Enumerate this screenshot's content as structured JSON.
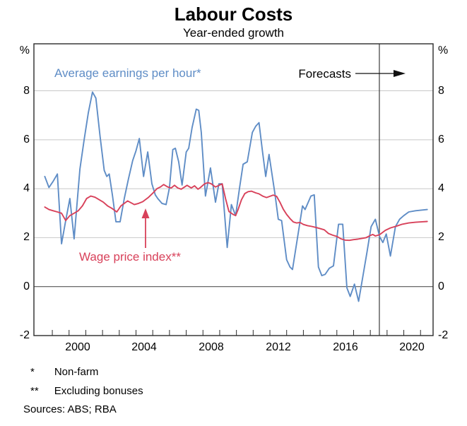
{
  "title": "Labour Costs",
  "subtitle": "Year-ended growth",
  "annotations": {
    "blue_label": "Average earnings per hour*",
    "red_label": "Wage price index**",
    "forecast_label": "Forecasts"
  },
  "footnotes": [
    {
      "marker": "*",
      "text": "Non-farm"
    },
    {
      "marker": "**",
      "text": "Excluding bonuses"
    }
  ],
  "sources": "Sources: ABS; RBA",
  "colors": {
    "blue": "#5f8dc6",
    "red": "#d8415a",
    "grid": "#c8c8c8",
    "zero_line": "#555555",
    "frame": "#2b2b2b",
    "forecast_line": "#3a3a3a",
    "arrow_black": "#111111"
  },
  "chart_data": {
    "type": "line",
    "title": "Labour Costs",
    "subtitle": "Year-ended growth",
    "unit": "%",
    "xlim": [
      1997.9,
      2021.75
    ],
    "ylim": [
      -2,
      9.92
    ],
    "grid": true,
    "gridline_values": [
      0,
      2,
      4,
      6,
      8
    ],
    "yticks": [
      {
        "label": "8",
        "value": 8
      },
      {
        "label": "6",
        "value": 6
      },
      {
        "label": "4",
        "value": 4
      },
      {
        "label": "2",
        "value": 2
      },
      {
        "label": "0",
        "value": 0
      },
      {
        "label": "-2",
        "value": -2
      }
    ],
    "minor_tick_years": [
      1999,
      2000,
      2001,
      2002,
      2003,
      2004,
      2005,
      2006,
      2007,
      2008,
      2009,
      2010,
      2011,
      2012,
      2013,
      2014,
      2015,
      2016,
      2017,
      2018,
      2019,
      2020,
      2021
    ],
    "xtick_labels": [
      {
        "label": "2000",
        "year": 2000.5
      },
      {
        "label": "2004",
        "year": 2004.5
      },
      {
        "label": "2008",
        "year": 2008.5
      },
      {
        "label": "2012",
        "year": 2012.5
      },
      {
        "label": "2016",
        "year": 2016.5
      },
      {
        "label": "2020",
        "year": 2020.5
      }
    ],
    "forecast_start": 2018.54,
    "legend_position": "annotated-in-plot",
    "series": [
      {
        "name": "Average earnings per hour (non-farm)",
        "color_key": "blue",
        "points": [
          [
            1998.55,
            4.5
          ],
          [
            1998.8,
            4.05
          ],
          [
            1999.05,
            4.3
          ],
          [
            1999.3,
            4.6
          ],
          [
            1999.55,
            1.75
          ],
          [
            1999.8,
            2.7
          ],
          [
            2000.05,
            3.6
          ],
          [
            2000.3,
            1.95
          ],
          [
            2000.65,
            4.8
          ],
          [
            2000.9,
            6.0
          ],
          [
            2001.15,
            7.1
          ],
          [
            2001.4,
            7.95
          ],
          [
            2001.6,
            7.7
          ],
          [
            2001.85,
            6.15
          ],
          [
            2002.1,
            4.75
          ],
          [
            2002.25,
            4.5
          ],
          [
            2002.4,
            4.6
          ],
          [
            2002.6,
            3.7
          ],
          [
            2002.8,
            2.65
          ],
          [
            2003.05,
            2.65
          ],
          [
            2003.3,
            3.6
          ],
          [
            2003.55,
            4.4
          ],
          [
            2003.8,
            5.15
          ],
          [
            2004.0,
            5.55
          ],
          [
            2004.2,
            6.05
          ],
          [
            2004.45,
            4.5
          ],
          [
            2004.7,
            5.5
          ],
          [
            2004.95,
            4.2
          ],
          [
            2005.15,
            3.75
          ],
          [
            2005.3,
            3.6
          ],
          [
            2005.55,
            3.4
          ],
          [
            2005.8,
            3.35
          ],
          [
            2006.0,
            4.05
          ],
          [
            2006.2,
            5.6
          ],
          [
            2006.35,
            5.65
          ],
          [
            2006.55,
            5.1
          ],
          [
            2006.75,
            4.15
          ],
          [
            2007.0,
            5.5
          ],
          [
            2007.15,
            5.65
          ],
          [
            2007.35,
            6.5
          ],
          [
            2007.6,
            7.25
          ],
          [
            2007.75,
            7.2
          ],
          [
            2007.9,
            6.3
          ],
          [
            2008.15,
            3.7
          ],
          [
            2008.45,
            4.85
          ],
          [
            2008.75,
            3.45
          ],
          [
            2008.95,
            4.2
          ],
          [
            2009.15,
            4.2
          ],
          [
            2009.45,
            1.6
          ],
          [
            2009.7,
            3.35
          ],
          [
            2009.95,
            2.9
          ],
          [
            2010.2,
            4.1
          ],
          [
            2010.4,
            5.0
          ],
          [
            2010.65,
            5.1
          ],
          [
            2010.95,
            6.3
          ],
          [
            2011.15,
            6.55
          ],
          [
            2011.35,
            6.7
          ],
          [
            2011.55,
            5.55
          ],
          [
            2011.75,
            4.5
          ],
          [
            2011.95,
            5.4
          ],
          [
            2012.3,
            3.8
          ],
          [
            2012.5,
            2.75
          ],
          [
            2012.7,
            2.7
          ],
          [
            2013.0,
            1.1
          ],
          [
            2013.2,
            0.8
          ],
          [
            2013.35,
            0.7
          ],
          [
            2013.95,
            3.3
          ],
          [
            2014.1,
            3.15
          ],
          [
            2014.45,
            3.7
          ],
          [
            2014.65,
            3.75
          ],
          [
            2014.9,
            0.8
          ],
          [
            2015.1,
            0.45
          ],
          [
            2015.3,
            0.5
          ],
          [
            2015.55,
            0.75
          ],
          [
            2015.8,
            0.85
          ],
          [
            2016.1,
            2.55
          ],
          [
            2016.35,
            2.55
          ],
          [
            2016.6,
            -0.05
          ],
          [
            2016.8,
            -0.4
          ],
          [
            2017.05,
            0.1
          ],
          [
            2017.3,
            -0.6
          ],
          [
            2017.8,
            1.4
          ],
          [
            2018.05,
            2.45
          ],
          [
            2018.3,
            2.75
          ],
          [
            2018.55,
            2.05
          ],
          [
            2018.75,
            1.8
          ],
          [
            2018.95,
            2.15
          ],
          [
            2019.2,
            1.25
          ],
          [
            2019.5,
            2.45
          ],
          [
            2019.75,
            2.75
          ],
          [
            2020.0,
            2.9
          ],
          [
            2020.3,
            3.05
          ],
          [
            2020.7,
            3.1
          ],
          [
            2021.4,
            3.15
          ]
        ]
      },
      {
        "name": "Wage price index (excluding bonuses)",
        "color_key": "red",
        "points": [
          [
            1998.55,
            3.25
          ],
          [
            1998.8,
            3.15
          ],
          [
            1999.05,
            3.1
          ],
          [
            1999.3,
            3.05
          ],
          [
            1999.55,
            3.0
          ],
          [
            1999.8,
            2.7
          ],
          [
            2000.05,
            2.9
          ],
          [
            2000.3,
            3.0
          ],
          [
            2000.55,
            3.1
          ],
          [
            2000.8,
            3.3
          ],
          [
            2001.05,
            3.6
          ],
          [
            2001.3,
            3.7
          ],
          [
            2001.55,
            3.65
          ],
          [
            2001.8,
            3.55
          ],
          [
            2002.05,
            3.45
          ],
          [
            2002.3,
            3.3
          ],
          [
            2002.55,
            3.2
          ],
          [
            2002.85,
            3.05
          ],
          [
            2003.1,
            3.3
          ],
          [
            2003.5,
            3.5
          ],
          [
            2003.9,
            3.35
          ],
          [
            2004.15,
            3.4
          ],
          [
            2004.4,
            3.47
          ],
          [
            2004.75,
            3.65
          ],
          [
            2005.05,
            3.85
          ],
          [
            2005.25,
            4.0
          ],
          [
            2005.45,
            4.07
          ],
          [
            2005.65,
            4.17
          ],
          [
            2005.9,
            4.07
          ],
          [
            2006.1,
            4.03
          ],
          [
            2006.3,
            4.14
          ],
          [
            2006.5,
            4.03
          ],
          [
            2006.7,
            3.98
          ],
          [
            2006.9,
            4.07
          ],
          [
            2007.05,
            4.14
          ],
          [
            2007.3,
            4.03
          ],
          [
            2007.5,
            4.12
          ],
          [
            2007.7,
            3.98
          ],
          [
            2007.85,
            4.05
          ],
          [
            2008.1,
            4.2
          ],
          [
            2008.3,
            4.25
          ],
          [
            2008.5,
            4.2
          ],
          [
            2008.75,
            4.07
          ],
          [
            2009.0,
            4.15
          ],
          [
            2009.15,
            4.2
          ],
          [
            2009.35,
            3.6
          ],
          [
            2009.55,
            3.07
          ],
          [
            2009.8,
            2.95
          ],
          [
            2009.95,
            2.9
          ],
          [
            2010.1,
            3.15
          ],
          [
            2010.3,
            3.55
          ],
          [
            2010.5,
            3.8
          ],
          [
            2010.7,
            3.88
          ],
          [
            2010.9,
            3.9
          ],
          [
            2011.15,
            3.83
          ],
          [
            2011.35,
            3.79
          ],
          [
            2011.6,
            3.69
          ],
          [
            2011.8,
            3.64
          ],
          [
            2012.0,
            3.69
          ],
          [
            2012.2,
            3.74
          ],
          [
            2012.4,
            3.69
          ],
          [
            2012.6,
            3.45
          ],
          [
            2012.8,
            3.16
          ],
          [
            2013.0,
            2.95
          ],
          [
            2013.2,
            2.78
          ],
          [
            2013.4,
            2.64
          ],
          [
            2013.6,
            2.6
          ],
          [
            2013.8,
            2.62
          ],
          [
            2014.0,
            2.54
          ],
          [
            2014.25,
            2.49
          ],
          [
            2014.5,
            2.46
          ],
          [
            2014.75,
            2.42
          ],
          [
            2015.0,
            2.37
          ],
          [
            2015.25,
            2.32
          ],
          [
            2015.5,
            2.17
          ],
          [
            2015.75,
            2.1
          ],
          [
            2016.0,
            2.05
          ],
          [
            2016.25,
            1.95
          ],
          [
            2016.5,
            1.9
          ],
          [
            2016.75,
            1.89
          ],
          [
            2017.0,
            1.92
          ],
          [
            2017.25,
            1.94
          ],
          [
            2017.5,
            1.97
          ],
          [
            2017.75,
            2.0
          ],
          [
            2018.0,
            2.09
          ],
          [
            2018.15,
            2.13
          ],
          [
            2018.3,
            2.07
          ],
          [
            2018.55,
            2.12
          ],
          [
            2018.9,
            2.3
          ],
          [
            2019.2,
            2.4
          ],
          [
            2019.6,
            2.48
          ],
          [
            2019.9,
            2.55
          ],
          [
            2020.3,
            2.6
          ],
          [
            2020.7,
            2.63
          ],
          [
            2021.1,
            2.65
          ],
          [
            2021.4,
            2.66
          ]
        ]
      }
    ]
  }
}
